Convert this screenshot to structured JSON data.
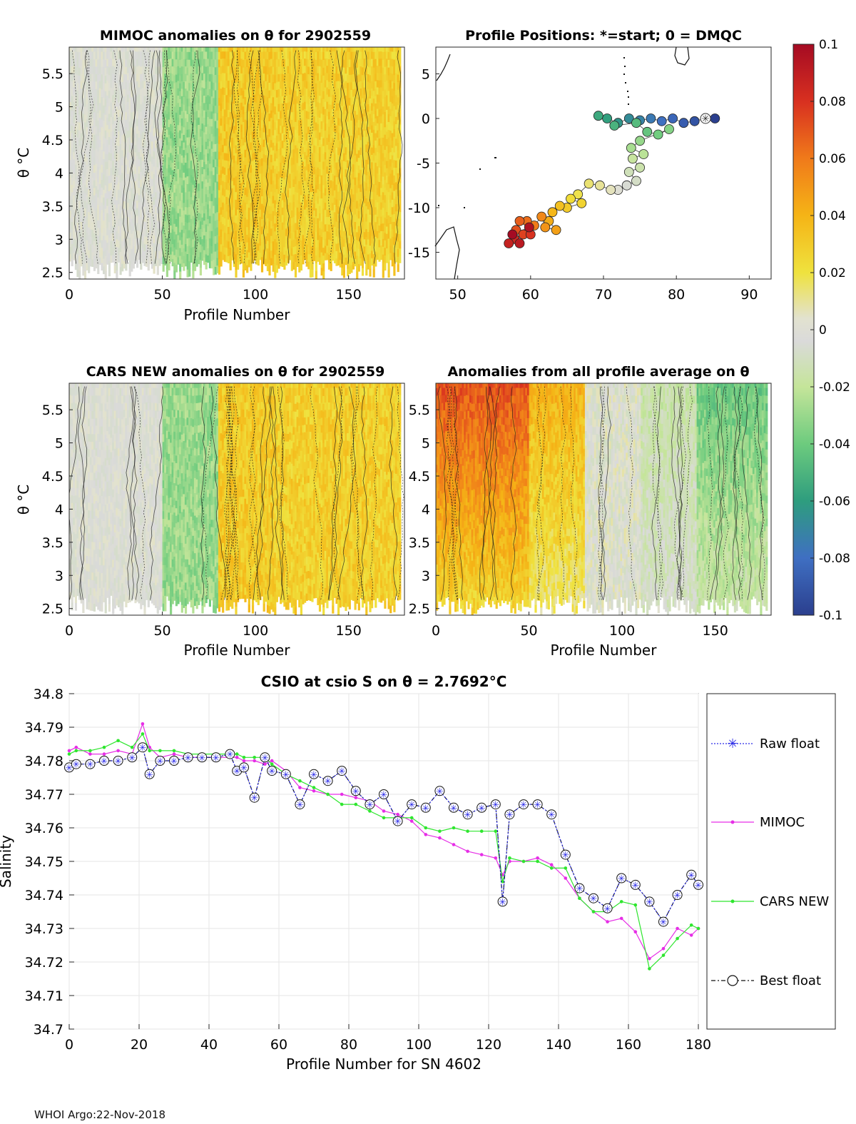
{
  "footer": "WHOI Argo:22-Nov-2018",
  "colorbar": {
    "tick_labels": [
      "0.1",
      "0.08",
      "0.06",
      "0.04",
      "0.02",
      "0",
      "-0.02",
      "-0.04",
      "-0.06",
      "-0.08",
      "-0.1"
    ],
    "range": [
      -0.1,
      0.1
    ]
  },
  "chart_data": [
    {
      "type": "heatmap",
      "title": "MIMOC anomalies on θ  for 2902559",
      "xlabel": "Profile Number",
      "ylabel": "θ °C",
      "xlim": [
        0,
        180
      ],
      "ylim": [
        2.4,
        5.9
      ],
      "xticks": [
        "0",
        "50",
        "100",
        "150"
      ],
      "yticks": [
        "5.5",
        "5",
        "4.5",
        "4",
        "3.5",
        "3",
        "2.5"
      ],
      "column_anomalies": [
        {
          "from": 0,
          "to": 50,
          "value": 0.0
        },
        {
          "from": 50,
          "to": 80,
          "value": -0.03
        },
        {
          "from": 80,
          "to": 110,
          "value": 0.03
        },
        {
          "from": 110,
          "to": 180,
          "value": 0.028
        }
      ]
    },
    {
      "type": "scatter",
      "title": "Profile Positions: *=start; 0 = DMQC",
      "xlim": [
        47,
        93
      ],
      "ylim": [
        -18,
        8
      ],
      "xticks": [
        "50",
        "60",
        "70",
        "80",
        "90"
      ],
      "yticks": [
        "5",
        "0",
        "-5",
        "-10",
        "-15"
      ],
      "start": {
        "lon": 84,
        "lat": 0
      },
      "track": [
        {
          "lon": 85.3,
          "lat": 0.0
        },
        {
          "lon": 84.0,
          "lat": 0.0
        },
        {
          "lon": 82.5,
          "lat": -0.3
        },
        {
          "lon": 81.0,
          "lat": -0.5
        },
        {
          "lon": 79.5,
          "lat": 0.0
        },
        {
          "lon": 78.0,
          "lat": -0.3
        },
        {
          "lon": 76.5,
          "lat": 0.0
        },
        {
          "lon": 75.0,
          "lat": -0.2
        },
        {
          "lon": 73.5,
          "lat": 0.0
        },
        {
          "lon": 72.0,
          "lat": -0.5
        },
        {
          "lon": 70.5,
          "lat": 0.0
        },
        {
          "lon": 69.3,
          "lat": 0.3
        },
        {
          "lon": 71.5,
          "lat": -0.8
        },
        {
          "lon": 74.5,
          "lat": -0.5
        },
        {
          "lon": 76.0,
          "lat": -1.5
        },
        {
          "lon": 77.5,
          "lat": -1.8
        },
        {
          "lon": 79.0,
          "lat": -1.2
        },
        {
          "lon": 75.0,
          "lat": -2.5
        },
        {
          "lon": 73.8,
          "lat": -3.3
        },
        {
          "lon": 75.5,
          "lat": -4.0
        },
        {
          "lon": 74.0,
          "lat": -4.5
        },
        {
          "lon": 75.0,
          "lat": -5.5
        },
        {
          "lon": 73.5,
          "lat": -6.0
        },
        {
          "lon": 74.5,
          "lat": -7.0
        },
        {
          "lon": 73.2,
          "lat": -7.5
        },
        {
          "lon": 72.0,
          "lat": -8.0
        },
        {
          "lon": 71.0,
          "lat": -8.0
        },
        {
          "lon": 69.5,
          "lat": -7.5
        },
        {
          "lon": 68.0,
          "lat": -7.3
        },
        {
          "lon": 66.5,
          "lat": -8.5
        },
        {
          "lon": 65.5,
          "lat": -9.0
        },
        {
          "lon": 67.0,
          "lat": -9.5
        },
        {
          "lon": 65.0,
          "lat": -10.0
        },
        {
          "lon": 64.0,
          "lat": -9.8
        },
        {
          "lon": 63.0,
          "lat": -10.5
        },
        {
          "lon": 62.5,
          "lat": -11.5
        },
        {
          "lon": 63.5,
          "lat": -12.5
        },
        {
          "lon": 62.0,
          "lat": -12.2
        },
        {
          "lon": 61.5,
          "lat": -11.0
        },
        {
          "lon": 60.5,
          "lat": -12.0
        },
        {
          "lon": 59.5,
          "lat": -11.5
        },
        {
          "lon": 58.5,
          "lat": -11.5
        },
        {
          "lon": 58.0,
          "lat": -12.5
        },
        {
          "lon": 59.0,
          "lat": -13.0
        },
        {
          "lon": 60.0,
          "lat": -13.0
        },
        {
          "lon": 57.8,
          "lat": -13.5
        },
        {
          "lon": 57.0,
          "lat": -14.0
        },
        {
          "lon": 58.5,
          "lat": -14.0
        },
        {
          "lon": 59.8,
          "lat": -12.2
        },
        {
          "lon": 57.5,
          "lat": -13.0
        }
      ]
    },
    {
      "type": "heatmap",
      "title": "CARS NEW anomalies on θ for 2902559",
      "xlabel": "Profile Number",
      "ylabel": "θ °C",
      "xlim": [
        0,
        180
      ],
      "ylim": [
        2.4,
        5.9
      ],
      "xticks": [
        "0",
        "50",
        "100",
        "150"
      ],
      "yticks": [
        "5.5",
        "5",
        "4.5",
        "4",
        "3.5",
        "3",
        "2.5"
      ],
      "column_anomalies": [
        {
          "from": 0,
          "to": 50,
          "value": 0.0
        },
        {
          "from": 50,
          "to": 80,
          "value": -0.03
        },
        {
          "from": 80,
          "to": 110,
          "value": 0.03
        },
        {
          "from": 110,
          "to": 180,
          "value": 0.028
        }
      ]
    },
    {
      "type": "heatmap",
      "title": "Anomalies from all profile average on θ",
      "xlabel": "Profile Number",
      "xlim": [
        0,
        180
      ],
      "ylim": [
        2.4,
        5.9
      ],
      "xticks": [
        "0",
        "50",
        "100",
        "150"
      ],
      "yticks": [
        "5.5",
        "5",
        "4.5",
        "4",
        "3.5",
        "3",
        "2.5"
      ],
      "column_anomalies": [
        {
          "from": 0,
          "to": 50,
          "value": 0.07
        },
        {
          "from": 50,
          "to": 80,
          "value": 0.04
        },
        {
          "from": 80,
          "to": 110,
          "value": 0.0
        },
        {
          "from": 110,
          "to": 140,
          "value": -0.015
        },
        {
          "from": 140,
          "to": 180,
          "value": -0.04
        }
      ]
    },
    {
      "type": "line",
      "title": "CSIO at csio S on θ = 2.7692°C",
      "xlabel": "Profile Number for SN 4602",
      "ylabel": "Salinity",
      "xlim": [
        0,
        180
      ],
      "ylim": [
        34.7,
        34.8
      ],
      "xticks": [
        "0",
        "20",
        "40",
        "60",
        "80",
        "100",
        "120",
        "140",
        "160",
        "180"
      ],
      "yticks": [
        "34.8",
        "34.79",
        "34.78",
        "34.77",
        "34.76",
        "34.75",
        "34.74",
        "34.73",
        "34.72",
        "34.71",
        "34.7"
      ],
      "legend": [
        "Raw float",
        "MIMOC",
        "CARS NEW",
        "Best float"
      ],
      "series": [
        {
          "name": "Raw float",
          "x": [
            0,
            2,
            6,
            10,
            14,
            18,
            21,
            23,
            26,
            30,
            34,
            38,
            42,
            46,
            48,
            50,
            53,
            56,
            58,
            62,
            66,
            70,
            74,
            78,
            82,
            86,
            90,
            94,
            98,
            102,
            106,
            110,
            114,
            118,
            122,
            124,
            126,
            130,
            134,
            138,
            142,
            146,
            150,
            154,
            158,
            162,
            166,
            170,
            174,
            178,
            180
          ],
          "y": [
            34.778,
            34.779,
            34.779,
            34.78,
            34.78,
            34.781,
            34.784,
            34.776,
            34.78,
            34.78,
            34.781,
            34.781,
            34.781,
            34.782,
            34.777,
            34.778,
            34.769,
            34.781,
            34.777,
            34.776,
            34.767,
            34.776,
            34.774,
            34.777,
            34.771,
            34.767,
            34.77,
            34.762,
            34.767,
            34.766,
            34.771,
            34.766,
            34.764,
            34.766,
            34.767,
            34.738,
            34.764,
            34.767,
            34.767,
            34.764,
            34.752,
            34.742,
            34.739,
            34.736,
            34.745,
            34.743,
            34.738,
            34.732,
            34.74,
            34.746,
            34.743
          ]
        },
        {
          "name": "MIMOC",
          "x": [
            0,
            2,
            6,
            10,
            14,
            18,
            21,
            23,
            26,
            30,
            34,
            38,
            42,
            46,
            48,
            50,
            53,
            56,
            58,
            62,
            66,
            70,
            74,
            78,
            82,
            86,
            90,
            94,
            98,
            102,
            106,
            110,
            114,
            118,
            122,
            124,
            126,
            130,
            134,
            138,
            142,
            146,
            150,
            154,
            158,
            162,
            166,
            170,
            174,
            178,
            180
          ],
          "y": [
            34.783,
            34.784,
            34.782,
            34.782,
            34.783,
            34.782,
            34.791,
            34.784,
            34.781,
            34.782,
            34.781,
            34.781,
            34.781,
            34.781,
            34.781,
            34.78,
            34.78,
            34.779,
            34.78,
            34.777,
            34.772,
            34.771,
            34.77,
            34.77,
            34.769,
            34.768,
            34.765,
            34.764,
            34.762,
            34.758,
            34.757,
            34.755,
            34.753,
            34.752,
            34.751,
            34.746,
            34.75,
            34.75,
            34.751,
            34.749,
            34.745,
            34.739,
            34.735,
            34.732,
            34.733,
            34.729,
            34.721,
            34.724,
            34.73,
            34.728,
            34.73
          ]
        },
        {
          "name": "CARS NEW",
          "x": [
            0,
            2,
            6,
            10,
            14,
            18,
            21,
            23,
            26,
            30,
            34,
            38,
            42,
            46,
            48,
            50,
            53,
            56,
            58,
            62,
            66,
            70,
            74,
            78,
            82,
            86,
            90,
            94,
            98,
            102,
            106,
            110,
            114,
            118,
            122,
            124,
            126,
            130,
            134,
            138,
            142,
            146,
            150,
            154,
            158,
            162,
            166,
            170,
            174,
            178,
            180
          ],
          "y": [
            34.782,
            34.783,
            34.783,
            34.784,
            34.786,
            34.784,
            34.788,
            34.783,
            34.783,
            34.783,
            34.782,
            34.782,
            34.782,
            34.782,
            34.782,
            34.781,
            34.781,
            34.781,
            34.779,
            34.776,
            34.774,
            34.772,
            34.77,
            34.767,
            34.767,
            34.765,
            34.763,
            34.763,
            34.763,
            34.76,
            34.759,
            34.76,
            34.759,
            34.759,
            34.759,
            34.744,
            34.751,
            34.75,
            34.75,
            34.748,
            34.748,
            34.739,
            34.735,
            34.735,
            34.738,
            34.737,
            34.718,
            34.722,
            34.727,
            34.731,
            34.73
          ]
        }
      ]
    }
  ]
}
